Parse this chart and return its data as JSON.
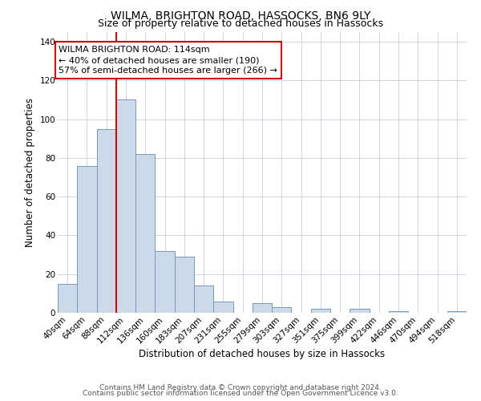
{
  "title": "WILMA, BRIGHTON ROAD, HASSOCKS, BN6 9LY",
  "subtitle": "Size of property relative to detached houses in Hassocks",
  "xlabel": "Distribution of detached houses by size in Hassocks",
  "ylabel": "Number of detached properties",
  "bar_labels": [
    "40sqm",
    "64sqm",
    "88sqm",
    "112sqm",
    "136sqm",
    "160sqm",
    "183sqm",
    "207sqm",
    "231sqm",
    "255sqm",
    "279sqm",
    "303sqm",
    "327sqm",
    "351sqm",
    "375sqm",
    "399sqm",
    "422sqm",
    "446sqm",
    "470sqm",
    "494sqm",
    "518sqm"
  ],
  "bar_values": [
    15,
    76,
    95,
    110,
    82,
    32,
    29,
    14,
    6,
    0,
    5,
    3,
    0,
    2,
    0,
    2,
    0,
    1,
    0,
    0,
    1
  ],
  "bar_color": "#ccd9e8",
  "bar_edge_color": "#7799bb",
  "bar_width": 1.0,
  "annotation_box_text": "WILMA BRIGHTON ROAD: 114sqm\n← 40% of detached houses are smaller (190)\n57% of semi-detached houses are larger (266) →",
  "annotation_box_color": "white",
  "annotation_box_edge_color": "#cc0000",
  "property_line_x": 3.0,
  "ylim": [
    0,
    145
  ],
  "yticks": [
    0,
    20,
    40,
    60,
    80,
    100,
    120,
    140
  ],
  "footer_line1": "Contains HM Land Registry data © Crown copyright and database right 2024.",
  "footer_line2": "Contains public sector information licensed under the Open Government Licence v3.0.",
  "background_color": "white",
  "grid_color": "#c5d0dc",
  "title_fontsize": 10,
  "subtitle_fontsize": 9,
  "axis_label_fontsize": 8.5,
  "tick_fontsize": 7.5,
  "annotation_fontsize": 8,
  "footer_fontsize": 6.5
}
